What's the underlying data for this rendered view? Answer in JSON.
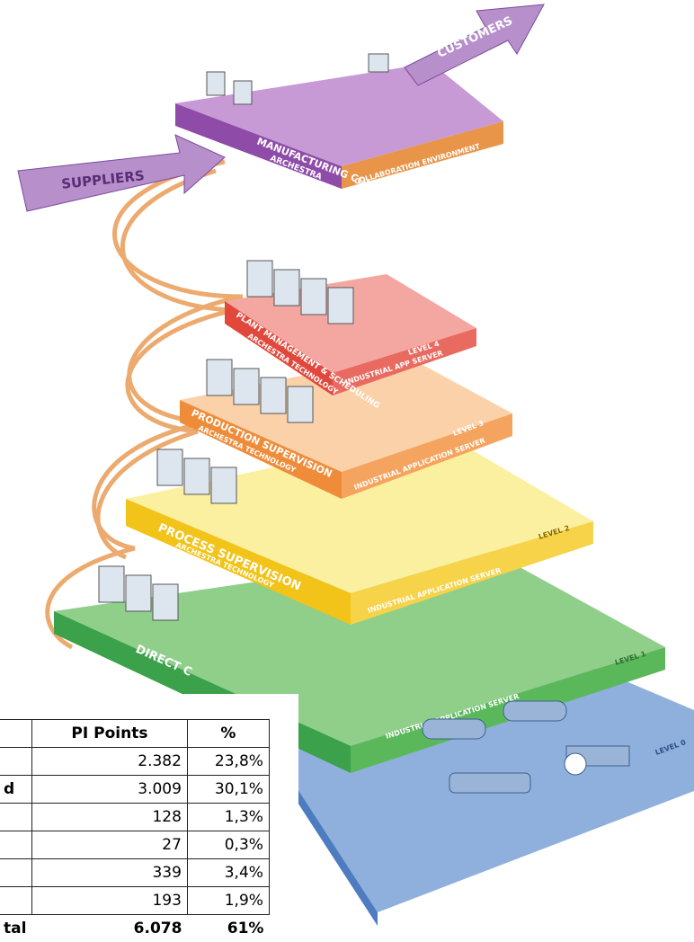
{
  "diagram": {
    "arrows": {
      "suppliers": "SUPPLIERS",
      "customers": "CUSTOMERS"
    },
    "layers": [
      {
        "title": "MANUFACTURING COLLABORATION",
        "sub": "ARCHESTRA",
        "side": "COLLABORATION ENVIRONMENT"
      },
      {
        "title": "PLANT MANAGEMENT & SCHEDULING",
        "level": "LEVEL 4",
        "sub": "ARCHESTRA TECHNOLOGY",
        "side": "INDUSTRIAL APP SERVER"
      },
      {
        "title": "PRODUCTION SUPERVISION",
        "level": "LEVEL 3",
        "sub": "ARCHESTRA TECHNOLOGY",
        "side": "INDUSTRIAL APPLICATION SERVER"
      },
      {
        "title": "PROCESS SUPERVISION",
        "level": "LEVEL 2",
        "sub": "ARCHESTRA TECHNOLOGY",
        "side": "INDUSTRIAL APPLICATION SERVER"
      },
      {
        "title": "DIRECT C",
        "level": "LEVEL 1",
        "side": "INDUSTRIAL APPLICATION SERVER"
      },
      {
        "level": "LEVEL 0"
      }
    ]
  },
  "table": {
    "header": [
      "PI Points",
      "%"
    ],
    "rows": [
      {
        "points": "2.382",
        "percent": "23,8%"
      },
      {
        "label": "d",
        "points": "3.009",
        "percent": "30,1%"
      },
      {
        "points": "128",
        "percent": "1,3%"
      },
      {
        "points": "27",
        "percent": "0,3%"
      },
      {
        "points": "339",
        "percent": "3,4%"
      },
      {
        "points": "193",
        "percent": "1,9%"
      }
    ],
    "total": {
      "label": "tal",
      "points": "6.078",
      "percent": "61%"
    }
  }
}
